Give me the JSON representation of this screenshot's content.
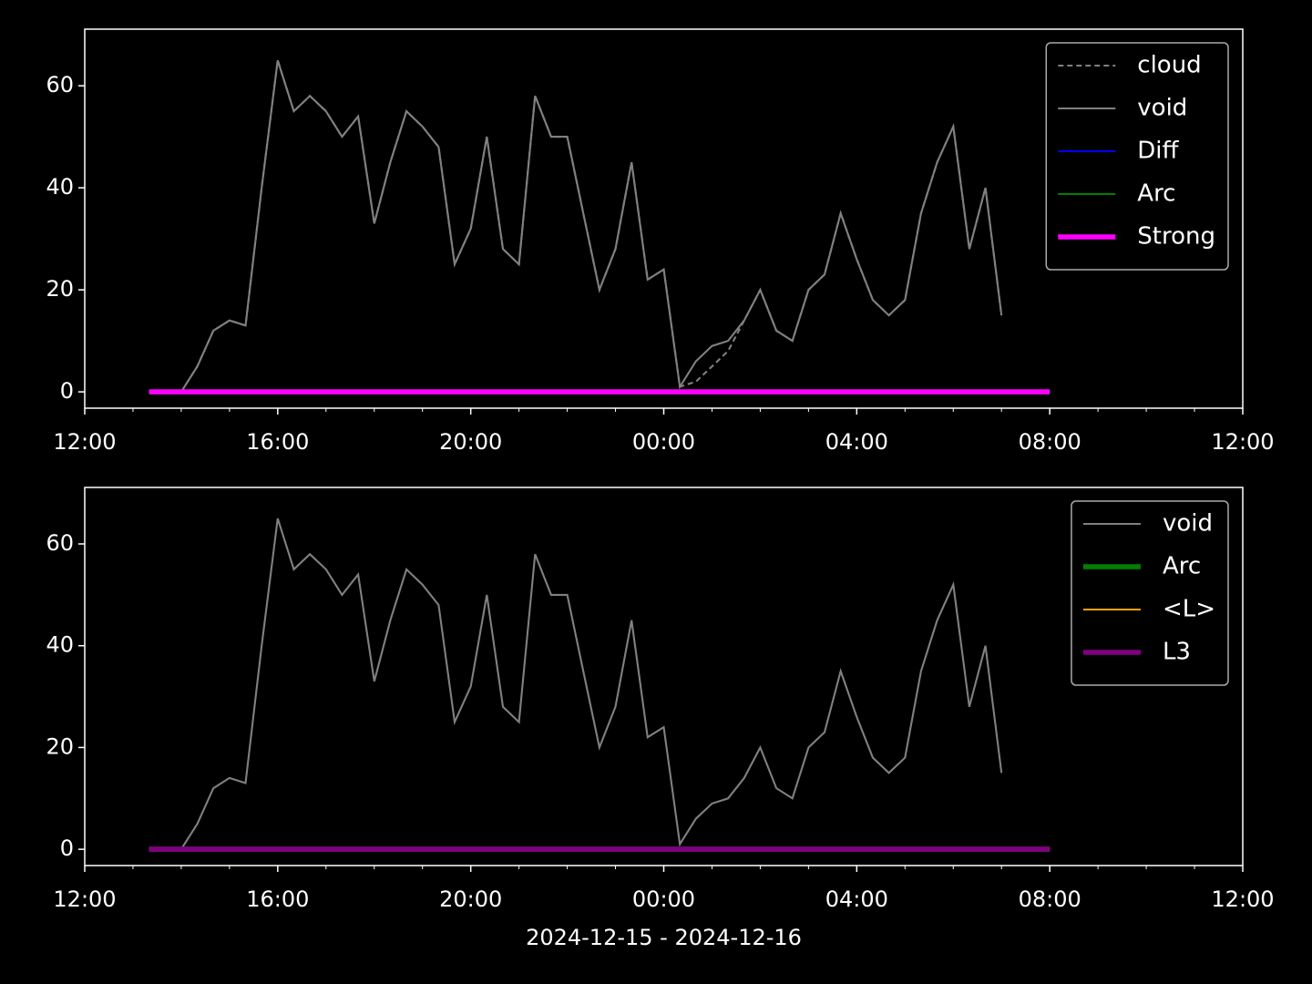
{
  "chart_data": [
    {
      "type": "line",
      "x": [
        "2024-12-15 13:20",
        "2024-12-15 13:40",
        "2024-12-15 14:00",
        "2024-12-15 14:20",
        "2024-12-15 14:40",
        "2024-12-15 15:00",
        "2024-12-15 15:20",
        "2024-12-15 15:40",
        "2024-12-15 16:00",
        "2024-12-15 16:20",
        "2024-12-15 16:40",
        "2024-12-15 17:00",
        "2024-12-15 17:20",
        "2024-12-15 17:40",
        "2024-12-15 18:00",
        "2024-12-15 18:20",
        "2024-12-15 18:40",
        "2024-12-15 19:00",
        "2024-12-15 19:20",
        "2024-12-15 19:40",
        "2024-12-15 20:00",
        "2024-12-15 20:20",
        "2024-12-15 20:40",
        "2024-12-15 21:00",
        "2024-12-15 21:20",
        "2024-12-15 21:40",
        "2024-12-15 22:00",
        "2024-12-15 22:20",
        "2024-12-15 22:40",
        "2024-12-15 23:00",
        "2024-12-15 23:20",
        "2024-12-15 23:40",
        "2024-12-16 00:00",
        "2024-12-16 00:20",
        "2024-12-16 00:40",
        "2024-12-16 01:00",
        "2024-12-16 01:20",
        "2024-12-16 01:40",
        "2024-12-16 02:00",
        "2024-12-16 02:20",
        "2024-12-16 02:40",
        "2024-12-16 03:00",
        "2024-12-16 03:20",
        "2024-12-16 03:40",
        "2024-12-16 04:00",
        "2024-12-16 04:20",
        "2024-12-16 04:40",
        "2024-12-16 05:00",
        "2024-12-16 05:20",
        "2024-12-16 05:40",
        "2024-12-16 06:00",
        "2024-12-16 06:20",
        "2024-12-16 06:40",
        "2024-12-16 07:00",
        "2024-12-16 07:20",
        "2024-12-16 07:40",
        "2024-12-16 08:00"
      ],
      "series": [
        {
          "name": "cloud",
          "color": "#808080",
          "linestyle": "dashed",
          "linewidth": 1.5,
          "values": [
            null,
            null,
            0,
            5,
            12,
            14,
            13,
            40,
            65,
            55,
            58,
            55,
            50,
            54,
            33,
            45,
            55,
            52,
            48,
            25,
            32,
            50,
            28,
            25,
            58,
            50,
            50,
            35,
            20,
            28,
            45,
            22,
            24,
            1,
            2,
            5,
            8,
            14,
            20,
            12,
            10,
            20,
            23,
            35,
            26,
            18,
            15,
            18,
            35,
            45,
            52,
            28,
            40,
            15,
            null,
            null,
            null
          ]
        },
        {
          "name": "void",
          "color": "#808080",
          "linestyle": "solid",
          "linewidth": 1.5,
          "values": [
            null,
            null,
            0,
            5,
            12,
            14,
            13,
            40,
            65,
            55,
            58,
            55,
            50,
            54,
            33,
            45,
            55,
            52,
            48,
            25,
            32,
            50,
            28,
            25,
            58,
            50,
            50,
            35,
            20,
            28,
            45,
            22,
            24,
            1,
            6,
            9,
            10,
            14,
            20,
            12,
            10,
            20,
            23,
            35,
            26,
            18,
            15,
            18,
            35,
            45,
            52,
            28,
            40,
            15,
            null,
            null,
            null
          ]
        },
        {
          "name": "Diff",
          "color": "#0000ff",
          "linestyle": "solid",
          "linewidth": 1.5,
          "values": [
            0,
            0,
            0,
            0,
            0,
            0,
            0,
            0,
            0,
            0,
            0,
            0,
            0,
            0,
            0,
            0,
            0,
            0,
            0,
            0,
            0,
            0,
            0,
            0,
            0,
            0,
            0,
            0,
            0,
            0,
            0,
            0,
            0,
            0,
            0,
            0,
            0,
            0,
            0,
            0,
            0,
            0,
            0,
            0,
            0,
            0,
            0,
            0,
            0,
            0,
            0,
            0,
            0,
            0,
            0,
            0,
            0
          ]
        },
        {
          "name": "Arc",
          "color": "#008000",
          "linestyle": "solid",
          "linewidth": 1.5,
          "values": [
            0,
            0,
            0,
            0,
            0,
            0,
            0,
            0,
            0,
            0,
            0,
            0,
            0,
            0,
            0,
            0,
            0,
            0,
            0,
            0,
            0,
            0,
            0,
            0,
            0,
            0,
            0,
            0,
            0,
            0,
            0,
            0,
            0,
            0,
            0,
            0,
            0,
            0,
            0,
            0,
            0,
            0,
            0,
            0,
            0,
            0,
            0,
            0,
            0,
            0,
            0,
            0,
            0,
            0,
            0,
            0,
            0
          ]
        },
        {
          "name": "Strong",
          "color": "#ff00ff",
          "linestyle": "solid",
          "linewidth": 4,
          "values": [
            0,
            0,
            0,
            0,
            0,
            0,
            0,
            0,
            0,
            0,
            0,
            0,
            0,
            0,
            0,
            0,
            0,
            0,
            0,
            0,
            0,
            0,
            0,
            0,
            0,
            0,
            0,
            0,
            0,
            0,
            0,
            0,
            0,
            0,
            0,
            0,
            0,
            0,
            0,
            0,
            0,
            0,
            0,
            0,
            0,
            0,
            0,
            0,
            0,
            0,
            0,
            0,
            0,
            0,
            0,
            0,
            0
          ]
        }
      ],
      "xlim": [
        "2024-12-15 12:00",
        "2024-12-16 12:00"
      ],
      "xticks": [
        {
          "value": "2024-12-15 12:00",
          "label": "12:00"
        },
        {
          "value": "2024-12-15 16:00",
          "label": "16:00"
        },
        {
          "value": "2024-12-15 20:00",
          "label": "20:00"
        },
        {
          "value": "2024-12-16 00:00",
          "label": "00:00"
        },
        {
          "value": "2024-12-16 04:00",
          "label": "04:00"
        },
        {
          "value": "2024-12-16 08:00",
          "label": "08:00"
        },
        {
          "value": "2024-12-16 12:00",
          "label": "12:00"
        }
      ],
      "xminorticks": [
        "2024-12-15 13:00",
        "2024-12-15 14:00",
        "2024-12-15 15:00",
        "2024-12-15 17:00",
        "2024-12-15 18:00",
        "2024-12-15 19:00",
        "2024-12-15 21:00",
        "2024-12-15 22:00",
        "2024-12-15 23:00",
        "2024-12-16 01:00",
        "2024-12-16 02:00",
        "2024-12-16 03:00",
        "2024-12-16 05:00",
        "2024-12-16 06:00",
        "2024-12-16 07:00",
        "2024-12-16 09:00",
        "2024-12-16 10:00",
        "2024-12-16 11:00"
      ],
      "ylim": [
        -3.2,
        71.1
      ],
      "yticks": [
        0,
        20,
        40,
        60
      ],
      "legend": "upper right"
    },
    {
      "type": "line",
      "x": [
        "2024-12-15 13:20",
        "2024-12-15 13:40",
        "2024-12-15 14:00",
        "2024-12-15 14:20",
        "2024-12-15 14:40",
        "2024-12-15 15:00",
        "2024-12-15 15:20",
        "2024-12-15 15:40",
        "2024-12-15 16:00",
        "2024-12-15 16:20",
        "2024-12-15 16:40",
        "2024-12-15 17:00",
        "2024-12-15 17:20",
        "2024-12-15 17:40",
        "2024-12-15 18:00",
        "2024-12-15 18:20",
        "2024-12-15 18:40",
        "2024-12-15 19:00",
        "2024-12-15 19:20",
        "2024-12-15 19:40",
        "2024-12-15 20:00",
        "2024-12-15 20:20",
        "2024-12-15 20:40",
        "2024-12-15 21:00",
        "2024-12-15 21:20",
        "2024-12-15 21:40",
        "2024-12-15 22:00",
        "2024-12-15 22:20",
        "2024-12-15 22:40",
        "2024-12-15 23:00",
        "2024-12-15 23:20",
        "2024-12-15 23:40",
        "2024-12-16 00:00",
        "2024-12-16 00:20",
        "2024-12-16 00:40",
        "2024-12-16 01:00",
        "2024-12-16 01:20",
        "2024-12-16 01:40",
        "2024-12-16 02:00",
        "2024-12-16 02:20",
        "2024-12-16 02:40",
        "2024-12-16 03:00",
        "2024-12-16 03:20",
        "2024-12-16 03:40",
        "2024-12-16 04:00",
        "2024-12-16 04:20",
        "2024-12-16 04:40",
        "2024-12-16 05:00",
        "2024-12-16 05:20",
        "2024-12-16 05:40",
        "2024-12-16 06:00",
        "2024-12-16 06:20",
        "2024-12-16 06:40",
        "2024-12-16 07:00",
        "2024-12-16 07:20",
        "2024-12-16 07:40",
        "2024-12-16 08:00"
      ],
      "series": [
        {
          "name": "void",
          "color": "#808080",
          "linestyle": "solid",
          "linewidth": 1.5,
          "values": [
            null,
            null,
            0,
            5,
            12,
            14,
            13,
            40,
            65,
            55,
            58,
            55,
            50,
            54,
            33,
            45,
            55,
            52,
            48,
            25,
            32,
            50,
            28,
            25,
            58,
            50,
            50,
            35,
            20,
            28,
            45,
            22,
            24,
            1,
            6,
            9,
            10,
            14,
            20,
            12,
            10,
            20,
            23,
            35,
            26,
            18,
            15,
            18,
            35,
            45,
            52,
            28,
            40,
            15,
            null,
            null,
            null
          ]
        },
        {
          "name": "Arc",
          "color": "#008000",
          "linestyle": "solid",
          "linewidth": 4,
          "values": [
            0,
            0,
            0,
            0,
            0,
            0,
            0,
            0,
            0,
            0,
            0,
            0,
            0,
            0,
            0,
            0,
            0,
            0,
            0,
            0,
            0,
            0,
            0,
            0,
            0,
            0,
            0,
            0,
            0,
            0,
            0,
            0,
            0,
            0,
            0,
            0,
            0,
            0,
            0,
            0,
            0,
            0,
            0,
            0,
            0,
            0,
            0,
            0,
            0,
            0,
            0,
            0,
            0,
            0,
            0,
            0,
            0
          ]
        },
        {
          "name": "<L>",
          "color": "#ffa500",
          "linestyle": "solid",
          "linewidth": 1.5,
          "values": [
            0,
            0,
            0,
            0,
            0,
            0,
            0,
            0,
            0,
            0,
            0,
            0,
            0,
            0,
            0,
            0,
            0,
            0,
            0,
            0,
            0,
            0,
            0,
            0,
            0,
            0,
            0,
            0,
            0,
            0,
            0,
            0,
            0,
            0,
            0,
            0,
            0,
            0,
            0,
            0,
            0,
            0,
            0,
            0,
            0,
            0,
            0,
            0,
            0,
            0,
            0,
            0,
            0,
            0,
            0,
            0,
            0
          ]
        },
        {
          "name": "L3",
          "color": "#800080",
          "linestyle": "solid",
          "linewidth": 4,
          "values": [
            0,
            0,
            0,
            0,
            0,
            0,
            0,
            0,
            0,
            0,
            0,
            0,
            0,
            0,
            0,
            0,
            0,
            0,
            0,
            0,
            0,
            0,
            0,
            0,
            0,
            0,
            0,
            0,
            0,
            0,
            0,
            0,
            0,
            0,
            0,
            0,
            0,
            0,
            0,
            0,
            0,
            0,
            0,
            0,
            0,
            0,
            0,
            0,
            0,
            0,
            0,
            0,
            0,
            0,
            0,
            0,
            0
          ]
        }
      ],
      "xlim": [
        "2024-12-15 12:00",
        "2024-12-16 12:00"
      ],
      "xticks": [
        {
          "value": "2024-12-15 12:00",
          "label": "12:00"
        },
        {
          "value": "2024-12-15 16:00",
          "label": "16:00"
        },
        {
          "value": "2024-12-15 20:00",
          "label": "20:00"
        },
        {
          "value": "2024-12-16 00:00",
          "label": "00:00"
        },
        {
          "value": "2024-12-16 04:00",
          "label": "04:00"
        },
        {
          "value": "2024-12-16 08:00",
          "label": "08:00"
        },
        {
          "value": "2024-12-16 12:00",
          "label": "12:00"
        }
      ],
      "xminorticks": [
        "2024-12-15 13:00",
        "2024-12-15 14:00",
        "2024-12-15 15:00",
        "2024-12-15 17:00",
        "2024-12-15 18:00",
        "2024-12-15 19:00",
        "2024-12-15 21:00",
        "2024-12-15 22:00",
        "2024-12-15 23:00",
        "2024-12-16 01:00",
        "2024-12-16 02:00",
        "2024-12-16 03:00",
        "2024-12-16 05:00",
        "2024-12-16 06:00",
        "2024-12-16 07:00",
        "2024-12-16 09:00",
        "2024-12-16 10:00",
        "2024-12-16 11:00"
      ],
      "ylim": [
        -3.2,
        71.1
      ],
      "yticks": [
        0,
        20,
        40,
        60
      ],
      "legend": "upper right",
      "xlabel": "2024-12-15 - 2024-12-16"
    }
  ]
}
